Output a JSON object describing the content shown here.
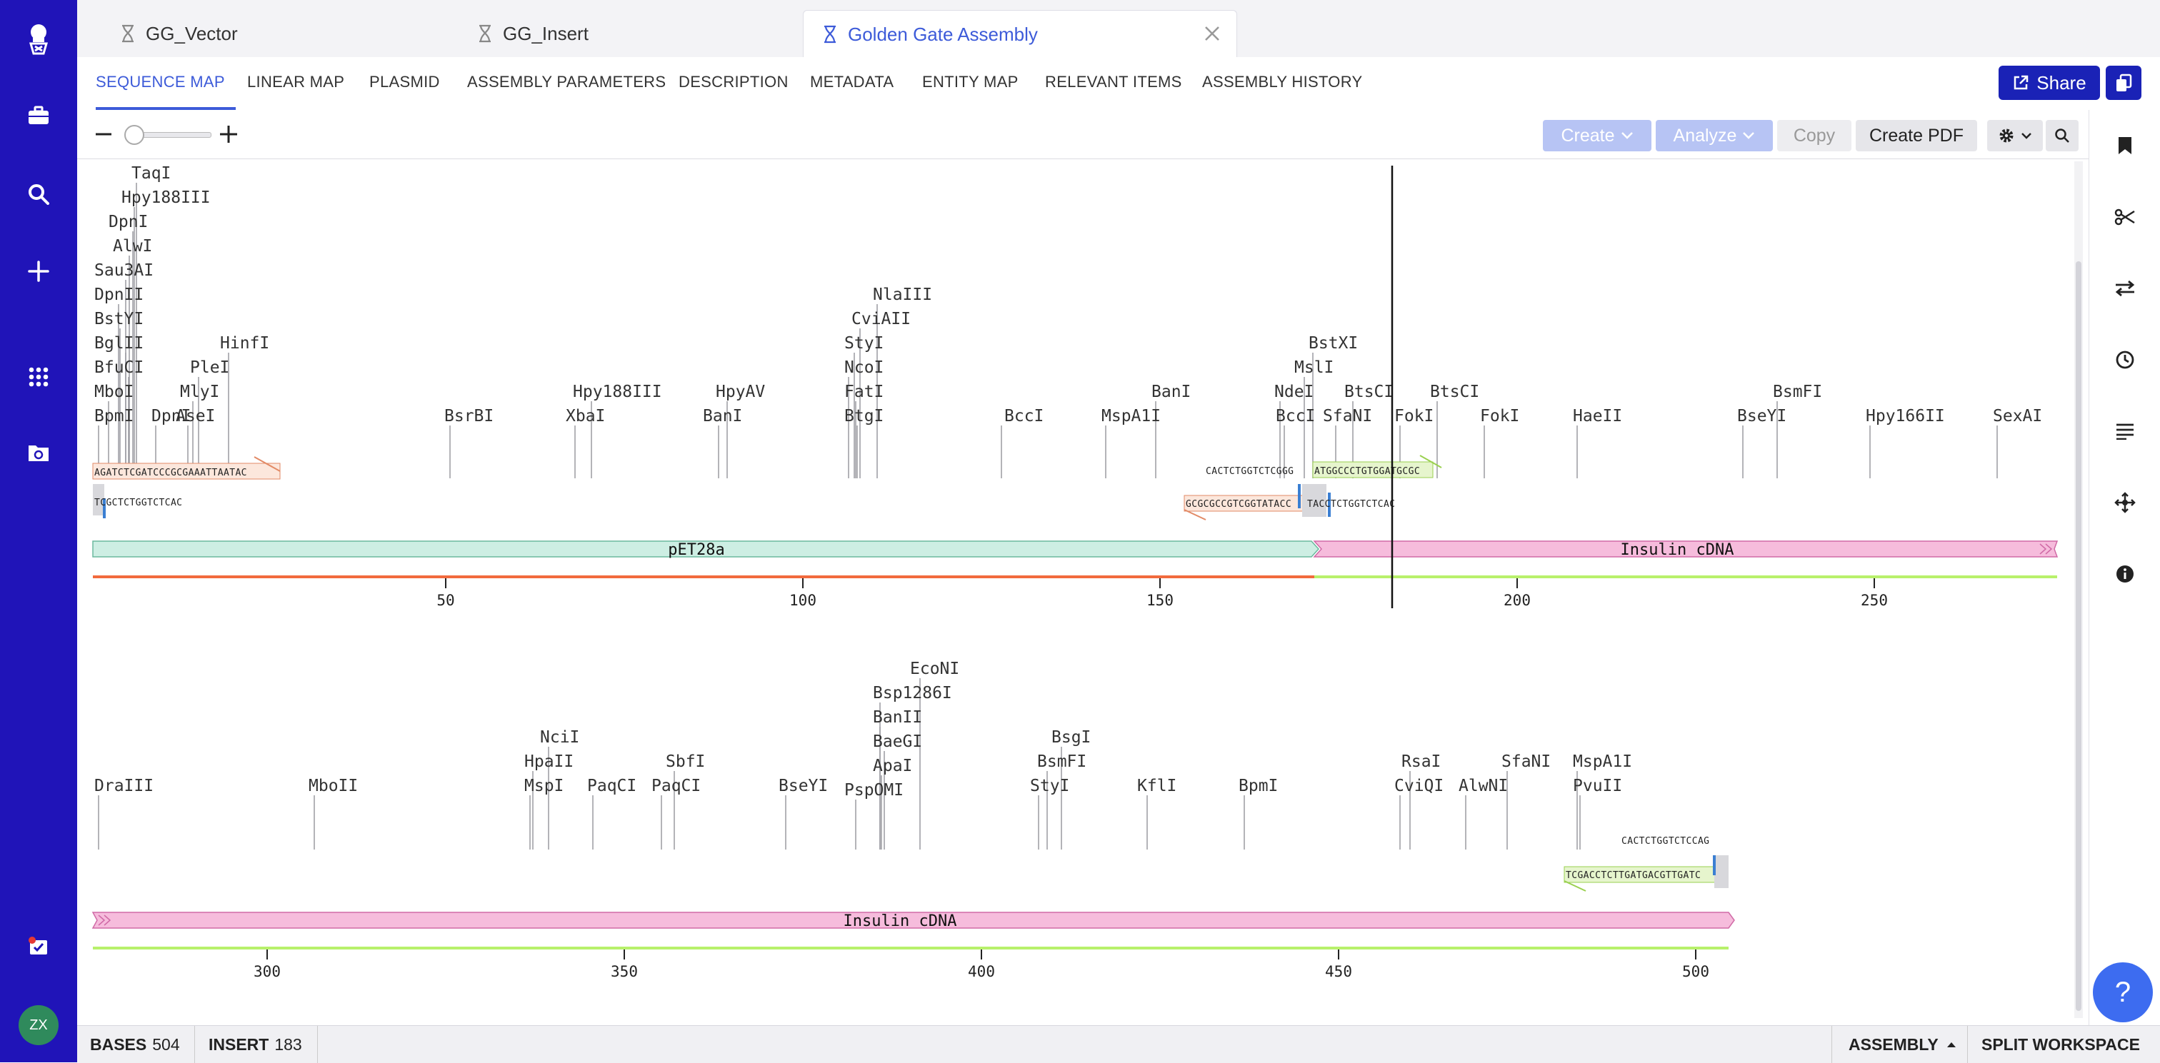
{
  "tabs": [
    {
      "label": "GG_Vector",
      "active": false
    },
    {
      "label": "GG_Insert",
      "active": false
    },
    {
      "label": "Golden Gate Assembly",
      "active": true
    }
  ],
  "subtabs": [
    "SEQUENCE MAP",
    "LINEAR MAP",
    "PLASMID",
    "ASSEMBLY PARAMETERS",
    "DESCRIPTION",
    "METADATA",
    "ENTITY MAP",
    "RELEVANT ITEMS",
    "ASSEMBLY HISTORY"
  ],
  "share_label": "Share",
  "toolbar": {
    "create": "Create",
    "analyze": "Analyze",
    "copy": "Copy",
    "create_pdf": "Create PDF"
  },
  "colors": {
    "sidebar": "#2014b8",
    "accent": "#3d5bd9",
    "vector_feature": "#cdeee3",
    "insert_feature": "#f6bcdc",
    "vector_line": "#f26a3d",
    "insert_line": "#b8f16b"
  },
  "map": {
    "row1": {
      "enzymes": [
        {
          "n": "TaqI"
        },
        {
          "n": "Hpy188III"
        },
        {
          "n": "DpnI"
        },
        {
          "n": "AlwI"
        },
        {
          "n": "Sau3AI"
        },
        {
          "n": "DpnII"
        },
        {
          "n": "BstYI"
        },
        {
          "n": "BglII"
        },
        {
          "n": "BfuCI"
        },
        {
          "n": "MboI"
        },
        {
          "n": "BpmI"
        },
        {
          "n": "DpnI"
        },
        {
          "n": "HinfI"
        },
        {
          "n": "PleI"
        },
        {
          "n": "MlyI"
        },
        {
          "n": "AseI"
        },
        {
          "n": "BsrBI"
        },
        {
          "n": "Hpy188III"
        },
        {
          "n": "XbaI"
        },
        {
          "n": "HpyAV"
        },
        {
          "n": "BanI"
        },
        {
          "n": "NlaIII"
        },
        {
          "n": "CviAII"
        },
        {
          "n": "StyI"
        },
        {
          "n": "NcoI"
        },
        {
          "n": "FatI"
        },
        {
          "n": "BtgI"
        },
        {
          "n": "BccI"
        },
        {
          "n": "MspA1I"
        },
        {
          "n": "BanI"
        },
        {
          "n": "BstXI"
        },
        {
          "n": "MslI"
        },
        {
          "n": "NdeI"
        },
        {
          "n": "BccI"
        },
        {
          "n": "BtsCI"
        },
        {
          "n": "SfaNI"
        },
        {
          "n": "BtsCI"
        },
        {
          "n": "FokI"
        },
        {
          "n": "FokI"
        },
        {
          "n": "HaeII"
        },
        {
          "n": "BsmFI"
        },
        {
          "n": "BseYI"
        },
        {
          "n": "Hpy166II"
        },
        {
          "n": "SexAI"
        }
      ],
      "primer1_seq": "AGATCTCGATCCCGCGAAATTAATAC",
      "overhang1_seq": "TCGCTCTGGTCTCAC",
      "primer2_top_seq": "CACTCTGGTCTCGGG",
      "primer2_green_seq": "ATGGCCCTGTGGATGCGC",
      "primer3_seq": "GCGCGCCGTCGGTATACC",
      "overhang3_seq": "TACCTCTGGTCTCAC",
      "features": [
        {
          "label": "pET28a"
        },
        {
          "label": "Insulin cDNA"
        }
      ],
      "ticks": [
        "50",
        "100",
        "150",
        "200",
        "250"
      ]
    },
    "row2": {
      "enzymes": [
        {
          "n": "EcoNI"
        },
        {
          "n": "Bsp1286I"
        },
        {
          "n": "BanII"
        },
        {
          "n": "BaeGI"
        },
        {
          "n": "ApaI"
        },
        {
          "n": "PspOMI"
        },
        {
          "n": "NciI"
        },
        {
          "n": "HpaII"
        },
        {
          "n": "MspI"
        },
        {
          "n": "PaqCI"
        },
        {
          "n": "SbfI"
        },
        {
          "n": "PaqCI"
        },
        {
          "n": "BseYI"
        },
        {
          "n": "BsgI"
        },
        {
          "n": "BsmFI"
        },
        {
          "n": "StyI"
        },
        {
          "n": "KflI"
        },
        {
          "n": "BpmI"
        },
        {
          "n": "RsaI"
        },
        {
          "n": "CviQI"
        },
        {
          "n": "AlwNI"
        },
        {
          "n": "SfaNI"
        },
        {
          "n": "MspA1I"
        },
        {
          "n": "PvuII"
        },
        {
          "n": "DraIII"
        },
        {
          "n": "MboII"
        }
      ],
      "top_seq": "CACTCTGGTCTCCAG",
      "primer_seq": "TCGACCTCTTGATGACGTTGATC",
      "features": [
        {
          "label": "Insulin cDNA"
        }
      ],
      "ticks": [
        "300",
        "350",
        "400",
        "450",
        "500"
      ]
    }
  },
  "status": {
    "bases_label": "BASES",
    "bases_value": "504",
    "insert_label": "INSERT",
    "insert_value": "183",
    "assembly_label": "ASSEMBLY",
    "split_label": "SPLIT WORKSPACE"
  },
  "avatar_initials": "ZX"
}
